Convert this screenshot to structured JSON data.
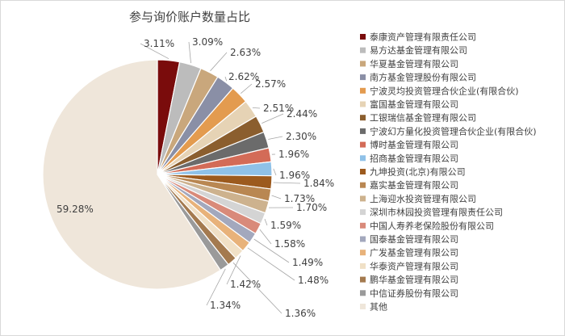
{
  "chart_data": {
    "type": "pie",
    "title": "参与询价账户数量占比",
    "start_angle_deg": 0,
    "direction": "clockwise",
    "legend_position": "right",
    "slices": [
      {
        "name": "泰康资产管理有限责任公司",
        "value": 3.11,
        "label": "3.11%",
        "color": "#7a0c0c"
      },
      {
        "name": "易方达基金管理有限公司",
        "value": 3.09,
        "label": "3.09%",
        "color": "#bcbcbc"
      },
      {
        "name": "华夏基金管理有限公司",
        "value": 2.63,
        "label": "2.63%",
        "color": "#c9a77c"
      },
      {
        "name": "南方基金管理股份有限公司",
        "value": 2.62,
        "label": "2.62%",
        "color": "#8a8fa6"
      },
      {
        "name": "宁波灵均投资管理合伙企业(有限合伙)",
        "value": 2.57,
        "label": "2.57%",
        "color": "#e39b4f"
      },
      {
        "name": "富国基金管理有限公司",
        "value": 2.51,
        "label": "2.51%",
        "color": "#e6d3b5"
      },
      {
        "name": "工银瑞信基金管理有限公司",
        "value": 2.44,
        "label": "2.44%",
        "color": "#8b5e2e"
      },
      {
        "name": "宁波幻方量化投资管理合伙企业(有限合伙)",
        "value": 2.3,
        "label": "2.30%",
        "color": "#6b6b6b"
      },
      {
        "name": "博时基金管理有限公司",
        "value": 1.96,
        "label": "1.96%",
        "color": "#d36b57"
      },
      {
        "name": "招商基金管理有限公司",
        "value": 1.96,
        "label": "1.96%",
        "color": "#8fc1e8"
      },
      {
        "name": "九坤投资(北京)有限公司",
        "value": 1.84,
        "label": "1.84%",
        "color": "#9c5a1e"
      },
      {
        "name": "嘉实基金管理有限公司",
        "value": 1.73,
        "label": "1.73%",
        "color": "#b98752"
      },
      {
        "name": "上海迎水投资管理有限公司",
        "value": 1.7,
        "label": "1.70%",
        "color": "#cdb28e"
      },
      {
        "name": "深圳市林园投资管理有限责任公司",
        "value": 1.59,
        "label": "1.59%",
        "color": "#d4d4d4"
      },
      {
        "name": "中国人寿养老保险股份有限公司",
        "value": 1.58,
        "label": "1.58%",
        "color": "#d98a7a"
      },
      {
        "name": "国泰基金管理有限公司",
        "value": 1.49,
        "label": "1.49%",
        "color": "#a3a8bd"
      },
      {
        "name": "广发基金管理有限公司",
        "value": 1.48,
        "label": "1.48%",
        "color": "#e8b27a"
      },
      {
        "name": "华泰资产管理有限公司",
        "value": 1.42,
        "label": "1.42%",
        "color": "#f0e0c6"
      },
      {
        "name": "鹏华基金管理有限公司",
        "value": 1.36,
        "label": "1.36%",
        "color": "#a47a4f"
      },
      {
        "name": "中信证券股份有限公司",
        "value": 1.34,
        "label": "1.34%",
        "color": "#9a9a9a"
      },
      {
        "name": "其他",
        "value": 59.28,
        "label": "59.28%",
        "color": "#efe6da"
      }
    ]
  }
}
